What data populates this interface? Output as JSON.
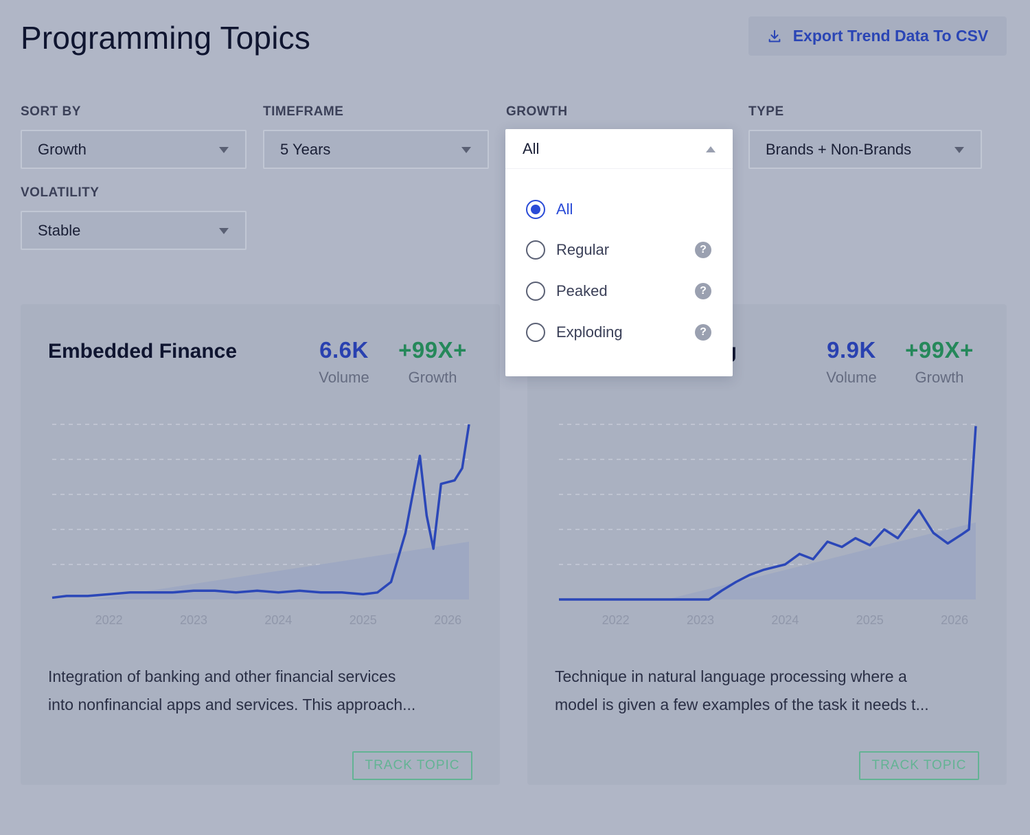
{
  "header": {
    "title": "Programming Topics",
    "export_label": "Export Trend Data To CSV"
  },
  "filters": {
    "sort_by": {
      "label": "SORT BY",
      "value": "Growth"
    },
    "timeframe": {
      "label": "TIMEFRAME",
      "value": "5 Years"
    },
    "growth": {
      "label": "GROWTH",
      "value": "All",
      "options": [
        {
          "label": "All",
          "selected": true,
          "help": false
        },
        {
          "label": "Regular",
          "selected": false,
          "help": true
        },
        {
          "label": "Peaked",
          "selected": false,
          "help": true
        },
        {
          "label": "Exploding",
          "selected": false,
          "help": true
        }
      ]
    },
    "type": {
      "label": "TYPE",
      "value": "Brands + Non-Brands"
    },
    "volatility": {
      "label": "VOLATILITY",
      "value": "Stable"
    }
  },
  "colors": {
    "accent": "#2a4bd7",
    "growth": "#25885a",
    "track": "#63b394",
    "line": "#2b47b8"
  },
  "cards": [
    {
      "title": "Embedded Finance",
      "volume": "6.6K",
      "volume_label": "Volume",
      "growth": "+99X+",
      "growth_label": "Growth",
      "description_line1": "Integration of banking and other financial services",
      "description_line2": "into nonfinancial apps and services. This approach...",
      "track_label": "TRACK TOPIC"
    },
    {
      "title_visible": "ing",
      "volume": "9.9K",
      "volume_label": "Volume",
      "growth": "+99X+",
      "growth_label": "Growth",
      "description_line1": "Technique in natural language processing where a",
      "description_line2": "model is given a few examples of the task it needs t...",
      "track_label": "TRACK TOPIC"
    }
  ],
  "chart_data": [
    {
      "type": "line",
      "xlabel": "",
      "ylabel": "",
      "x_ticks": [
        "2022",
        "2023",
        "2024",
        "2025",
        "2026"
      ],
      "xlim": [
        2021.33,
        2026.25
      ],
      "ylim": [
        0,
        100
      ],
      "grid": true,
      "series": [
        {
          "values": [
            [
              2021.33,
              1
            ],
            [
              2021.5,
              2
            ],
            [
              2021.75,
              2
            ],
            [
              2022.0,
              3
            ],
            [
              2022.25,
              4
            ],
            [
              2022.5,
              4
            ],
            [
              2022.75,
              4
            ],
            [
              2023.0,
              5
            ],
            [
              2023.25,
              5
            ],
            [
              2023.5,
              4
            ],
            [
              2023.75,
              5
            ],
            [
              2024.0,
              4
            ],
            [
              2024.25,
              5
            ],
            [
              2024.5,
              4
            ],
            [
              2024.75,
              4
            ],
            [
              2025.0,
              3
            ],
            [
              2025.17,
              4
            ],
            [
              2025.33,
              10
            ],
            [
              2025.5,
              38
            ],
            [
              2025.67,
              82
            ],
            [
              2025.75,
              48
            ],
            [
              2025.83,
              29
            ],
            [
              2025.92,
              66
            ],
            [
              2026.08,
              68
            ],
            [
              2026.17,
              75
            ],
            [
              2026.25,
              100
            ]
          ]
        }
      ],
      "baseline_area": [
        [
          2021.8,
          0
        ],
        [
          2026.25,
          33
        ]
      ]
    },
    {
      "type": "line",
      "xlabel": "",
      "ylabel": "",
      "x_ticks": [
        "2022",
        "2023",
        "2024",
        "2025",
        "2026"
      ],
      "xlim": [
        2021.33,
        2026.25
      ],
      "ylim": [
        0,
        100
      ],
      "grid": true,
      "series": [
        {
          "values": [
            [
              2021.33,
              0
            ],
            [
              2022.0,
              0
            ],
            [
              2022.75,
              0
            ],
            [
              2023.1,
              0
            ],
            [
              2023.25,
              5
            ],
            [
              2023.42,
              10
            ],
            [
              2023.58,
              14
            ],
            [
              2023.75,
              17
            ],
            [
              2024.0,
              20
            ],
            [
              2024.17,
              26
            ],
            [
              2024.33,
              23
            ],
            [
              2024.5,
              33
            ],
            [
              2024.67,
              30
            ],
            [
              2024.83,
              35
            ],
            [
              2025.0,
              31
            ],
            [
              2025.17,
              40
            ],
            [
              2025.33,
              35
            ],
            [
              2025.5,
              46
            ],
            [
              2025.58,
              51
            ],
            [
              2025.75,
              38
            ],
            [
              2025.92,
              32
            ],
            [
              2026.08,
              37
            ],
            [
              2026.17,
              40
            ],
            [
              2026.25,
              99
            ]
          ]
        }
      ],
      "baseline_area": [
        [
          2022.6,
          0
        ],
        [
          2026.25,
          44
        ]
      ]
    }
  ]
}
